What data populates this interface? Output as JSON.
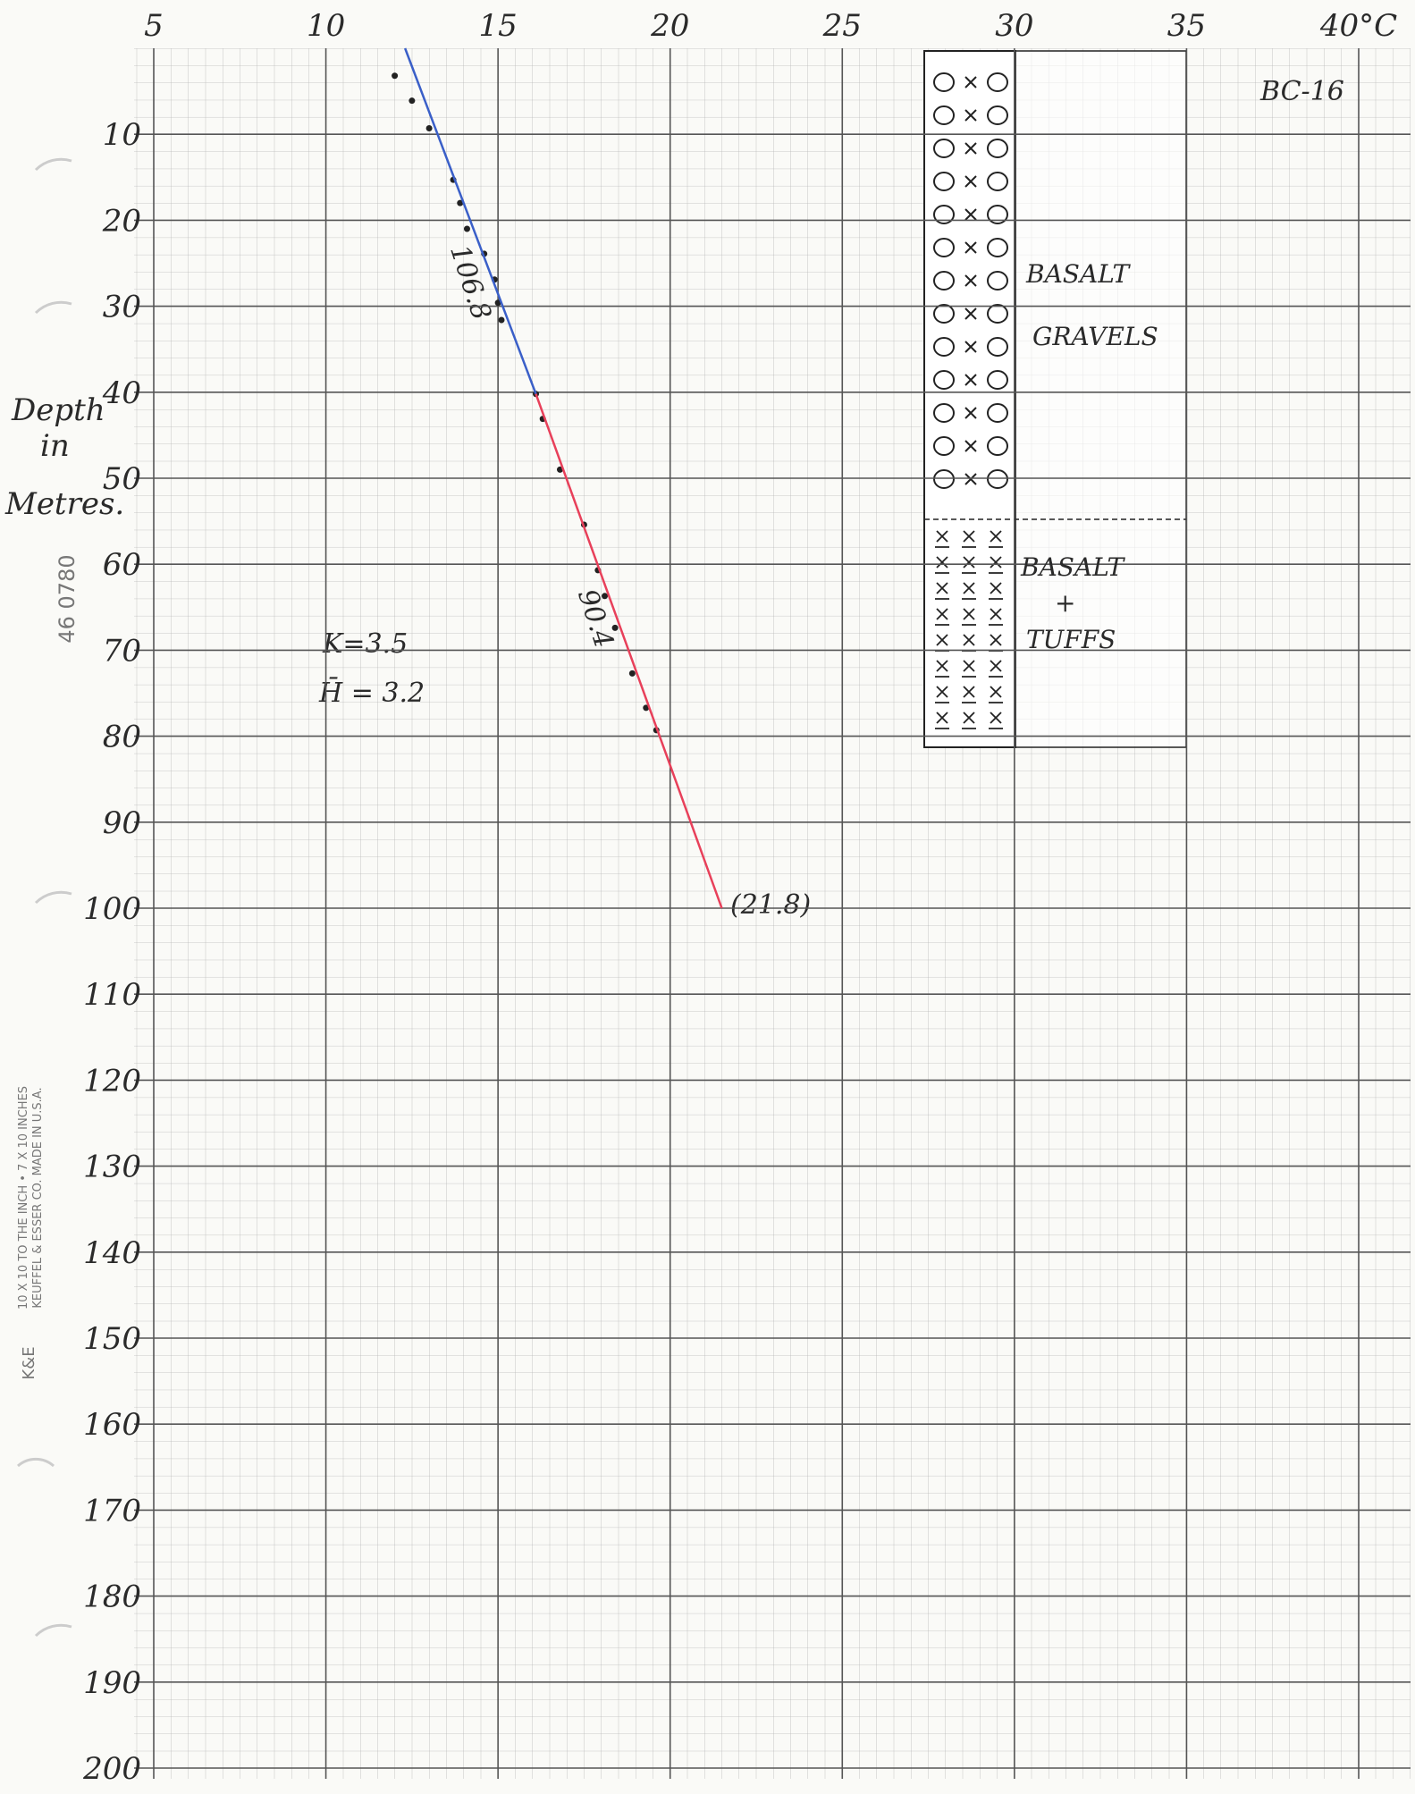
{
  "chart_data": {
    "type": "scatter",
    "invert_y": true,
    "xlim": [
      5,
      40
    ],
    "xticks": [
      5,
      10,
      15,
      20,
      25,
      30,
      35,
      {
        "value": 40,
        "label": "40°C"
      }
    ],
    "ylim": [
      0,
      200
    ],
    "yticks": [
      10,
      20,
      30,
      40,
      50,
      60,
      70,
      80,
      90,
      100,
      110,
      120,
      130,
      140,
      150,
      160,
      170,
      180,
      190,
      200
    ],
    "grid": true,
    "y_label": [
      "Depth",
      "in",
      "Metres."
    ],
    "series": [
      {
        "type": "scatter",
        "color": "#222222",
        "x": [
          12.0,
          12.5,
          13.0,
          13.7,
          13.9,
          14.1,
          14.6,
          14.9,
          15.0,
          15.1,
          16.1,
          16.3,
          16.8,
          17.5,
          17.9,
          18.1,
          18.4,
          18.9,
          19.3,
          19.6
        ],
        "values": [
          3.2,
          6.1,
          9.3,
          15.3,
          18,
          21,
          23.9,
          26.9,
          29.6,
          31.6,
          40.2,
          43.1,
          49,
          55.4,
          60.7,
          63.7,
          67.4,
          72.7,
          76.7,
          79.3
        ]
      },
      {
        "type": "line",
        "color": "#3a5fc8",
        "x": [
          12.3,
          16.1
        ],
        "values": [
          0,
          40.2
        ]
      },
      {
        "type": "line",
        "color": "#e8405a",
        "x": [
          16.1,
          21.5
        ],
        "values": [
          40.2,
          100
        ]
      }
    ],
    "annotations": [
      "BC-16",
      "106.8",
      "90.4",
      "K=3.5",
      "H̄ = 3.2",
      "(21.8)"
    ],
    "lithology": [
      {
        "lines": [
          "BASALT",
          "GRAVELS"
        ]
      },
      {
        "lines": [
          "BASALT",
          "+",
          "TUFFS"
        ]
      }
    ]
  },
  "paper": {
    "code": "46 0780",
    "maker": [
      "10 X 10 TO THE INCH • 7 X 10 INCHES",
      "KEUFFEL & ESSER CO. MADE IN U.S.A."
    ],
    "logo": "K&E"
  }
}
